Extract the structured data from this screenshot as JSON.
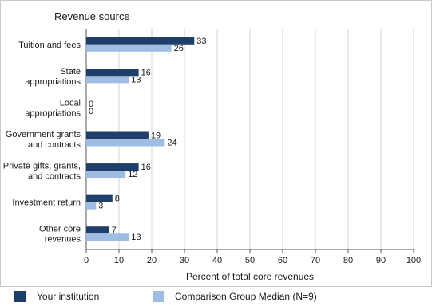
{
  "chart_data": {
    "type": "bar",
    "orientation": "horizontal",
    "category_header": "Revenue source",
    "categories": [
      "Tuition and fees",
      "State appropriations",
      "Local appropriations",
      "Government grants and contracts",
      "Private gifts, grants, and contracts",
      "Investment return",
      "Other core revenues"
    ],
    "category_lines": [
      [
        "Tuition and fees"
      ],
      [
        "State",
        "appropriations"
      ],
      [
        "Local",
        "appropriations"
      ],
      [
        "Government grants",
        "and contracts"
      ],
      [
        "Private gifts, grants,",
        "and contracts"
      ],
      [
        "Investment return"
      ],
      [
        "Other core",
        "revenues"
      ]
    ],
    "series": [
      {
        "name": "Your institution",
        "values": [
          33,
          16,
          0,
          19,
          16,
          8,
          7
        ],
        "color": "#1f3f6b"
      },
      {
        "name": "Comparison Group Median (N=9)",
        "values": [
          26,
          13,
          0,
          24,
          12,
          3,
          13
        ],
        "color": "#9fbde3"
      }
    ],
    "xlabel": "Percent of total core revenues",
    "xlim": [
      0,
      100
    ],
    "xticks": [
      0,
      10,
      20,
      30,
      40,
      50,
      60,
      70,
      80,
      90,
      100
    ],
    "grid": true,
    "legend_position": "bottom"
  }
}
